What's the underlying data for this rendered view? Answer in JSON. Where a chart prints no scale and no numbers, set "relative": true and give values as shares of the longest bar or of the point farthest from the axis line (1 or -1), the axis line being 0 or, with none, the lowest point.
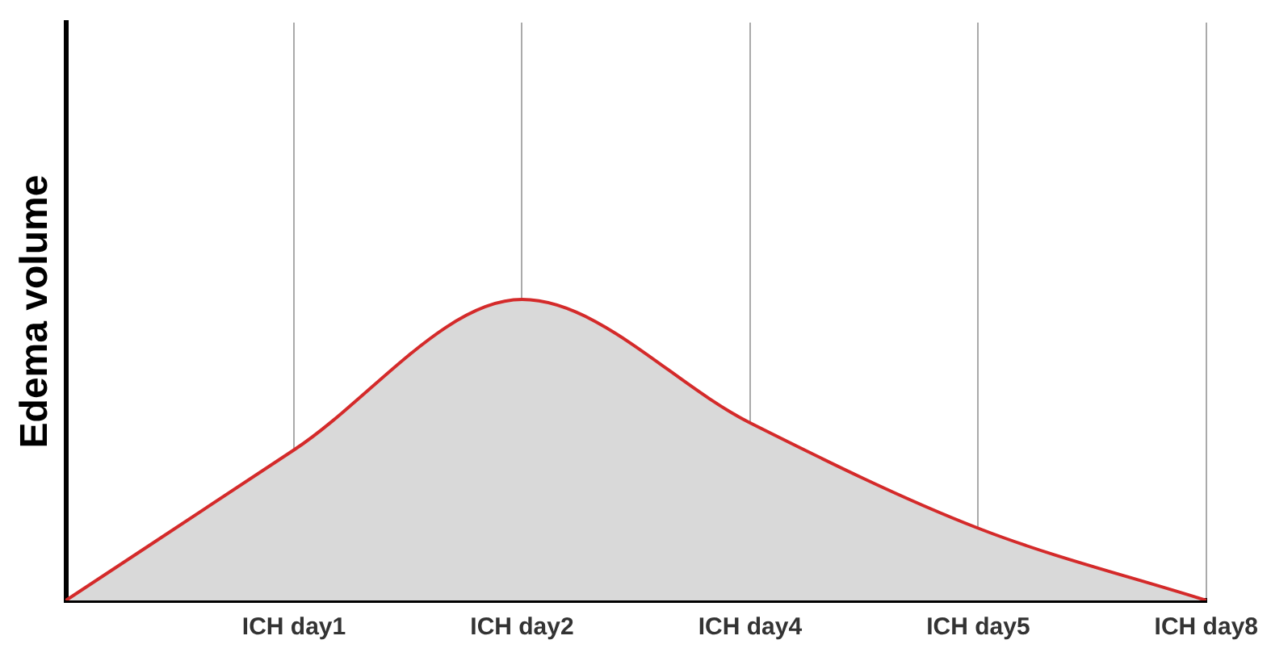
{
  "chart_data": {
    "type": "area",
    "ylabel": "Edema volume",
    "relative": true,
    "grid": "x",
    "categories": [
      null,
      "ICH day1",
      "ICH day2",
      "ICH day4",
      "ICH day5",
      "ICH day8"
    ],
    "series": [
      {
        "color": "#d42a2a",
        "values": [
          0,
          0.5,
          1,
          0.59,
          0.24,
          0
        ]
      }
    ]
  }
}
